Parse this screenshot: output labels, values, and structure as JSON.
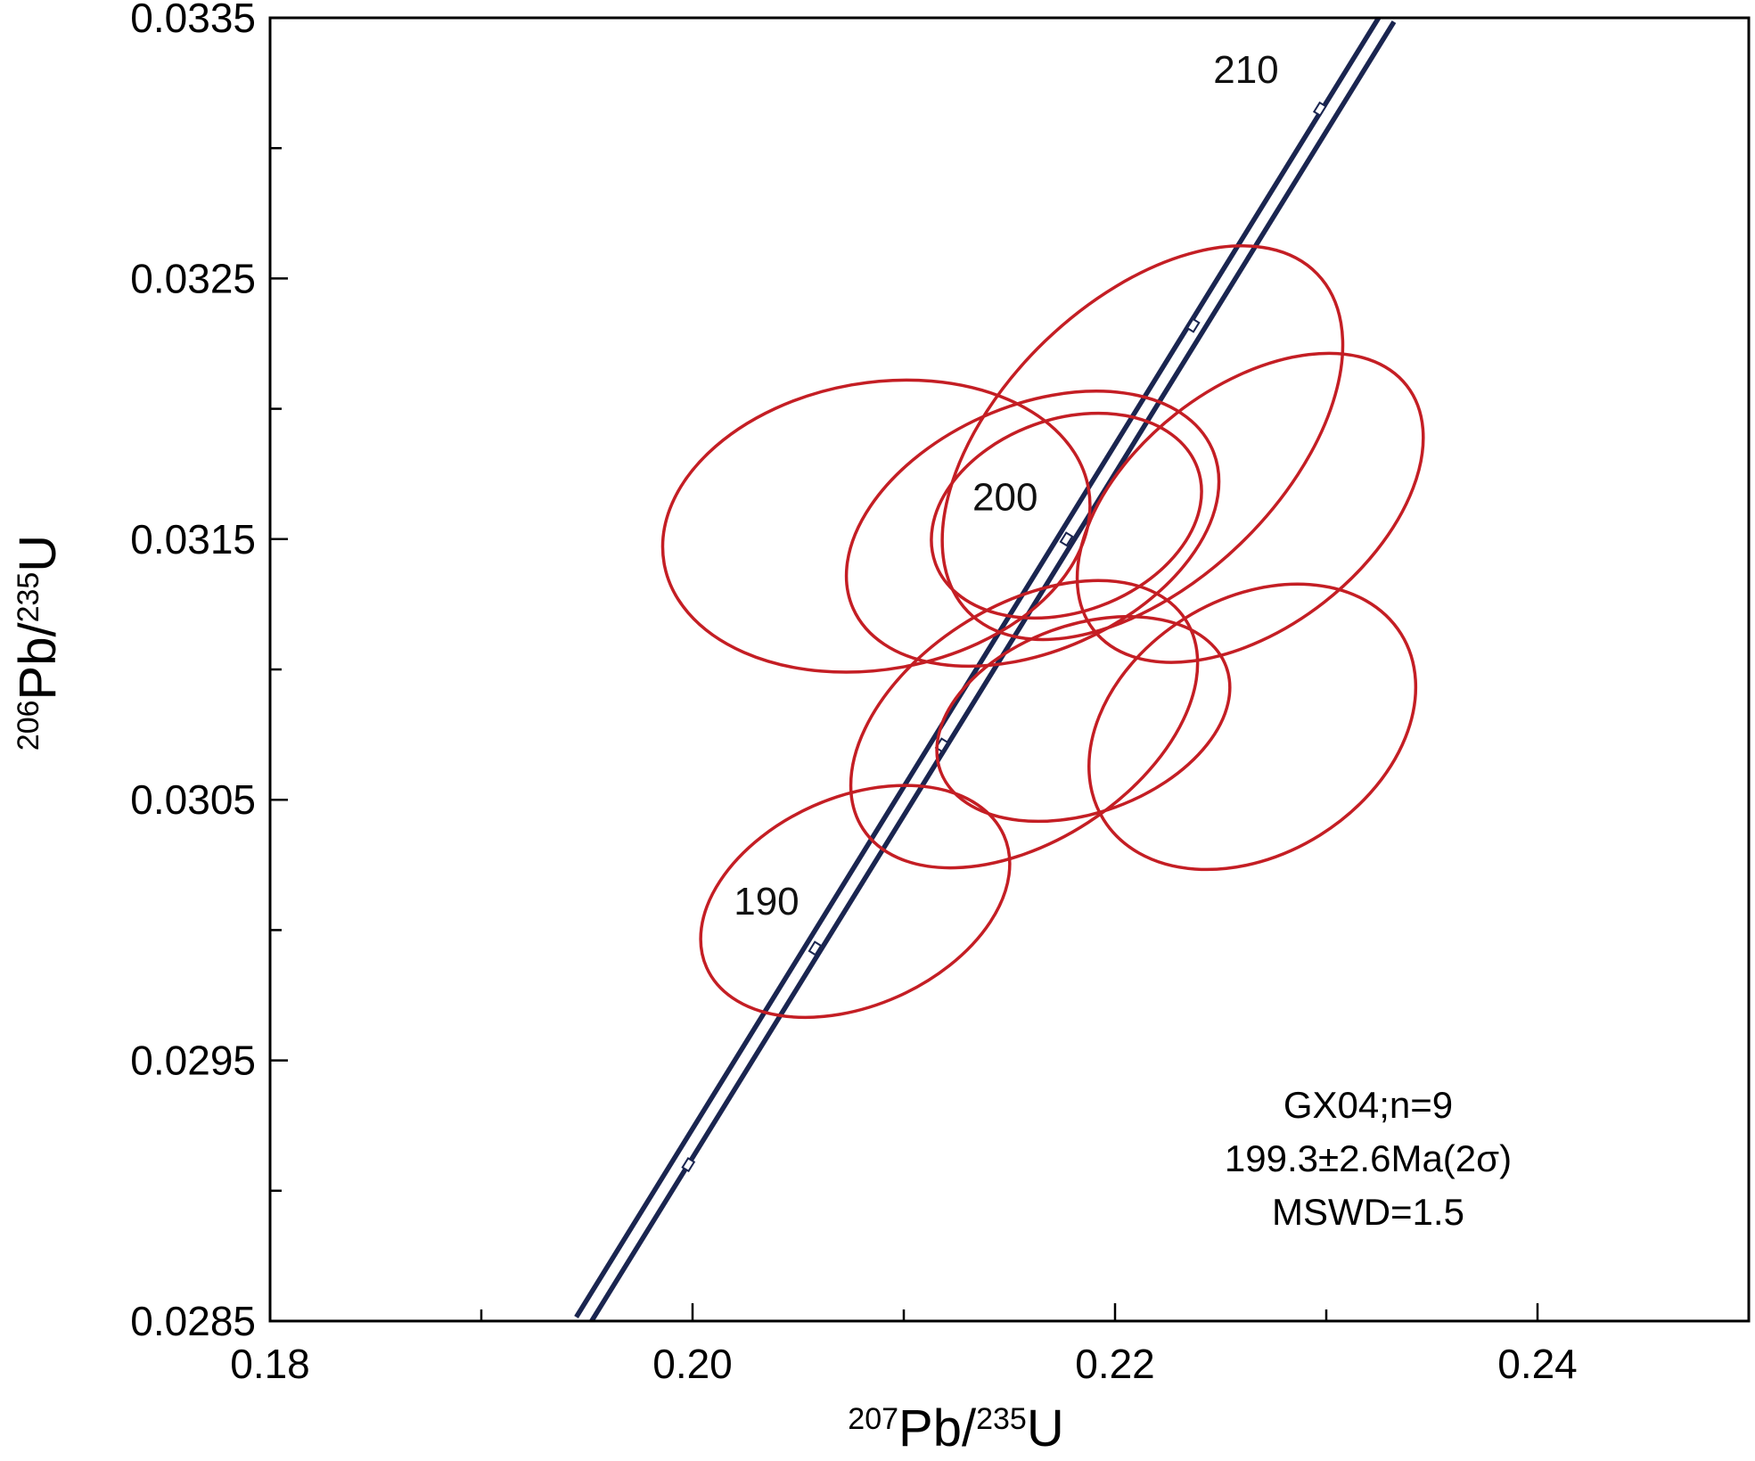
{
  "chart_data": {
    "type": "scatter",
    "subtype": "concordia-diagram",
    "title": "",
    "xlabel": {
      "base": "Pb/",
      "sup1": "207",
      "sup2": "235",
      "tail": "U"
    },
    "ylabel": {
      "base": "Pb/",
      "sup1": "206",
      "sup2": "235",
      "tail": "U"
    },
    "xlim": [
      0.18,
      0.25
    ],
    "ylim": [
      0.0285,
      0.0335
    ],
    "x_ticks": [
      {
        "value": 0.18,
        "label": "0.18"
      },
      {
        "value": 0.2,
        "label": "0.20"
      },
      {
        "value": 0.22,
        "label": "0.22"
      },
      {
        "value": 0.24,
        "label": "0.24"
      }
    ],
    "x_minor_ticks": [
      0.19,
      0.21,
      0.23
    ],
    "y_ticks": [
      {
        "value": 0.0285,
        "label": "0.0285"
      },
      {
        "value": 0.0295,
        "label": "0.0295"
      },
      {
        "value": 0.0305,
        "label": "0.0305"
      },
      {
        "value": 0.0315,
        "label": "0.0315"
      },
      {
        "value": 0.0325,
        "label": "0.0325"
      },
      {
        "value": 0.0335,
        "label": "0.0335"
      }
    ],
    "y_minor_ticks": [
      0.029,
      0.03,
      0.031,
      0.032,
      0.033
    ],
    "grid": false,
    "concordia": {
      "color": "#1a2550",
      "line": [
        [
          0.1948,
          0.0285
        ],
        [
          0.2329,
          0.0335
        ]
      ],
      "age_labels": [
        {
          "age": "190",
          "x": 0.2058,
          "y": 0.02993,
          "label_x": 0.2035,
          "label_y": 0.03006
        },
        {
          "age": "200",
          "x": 0.2177,
          "y": 0.0315,
          "label_x": 0.2148,
          "label_y": 0.03161
        },
        {
          "age": "210",
          "x": 0.2297,
          "y": 0.03315,
          "label_x": 0.2262,
          "label_y": 0.03325
        }
      ],
      "minor_marks": [
        {
          "x": 0.1998,
          "y": 0.0291
        },
        {
          "x": 0.2118,
          "y": 0.03071
        },
        {
          "x": 0.2237,
          "y": 0.03232
        }
      ]
    },
    "ellipse_color": "#c41e24",
    "ellipses": [
      {
        "cx": 0.2087,
        "cy": 0.03155,
        "rx": 0.0102,
        "ry": 0.00055,
        "angle": 10
      },
      {
        "cx": 0.2161,
        "cy": 0.03154,
        "rx": 0.0093,
        "ry": 0.00047,
        "angle": 24
      },
      {
        "cx": 0.2177,
        "cy": 0.03159,
        "rx": 0.0066,
        "ry": 0.00037,
        "angle": 20
      },
      {
        "cx": 0.2213,
        "cy": 0.03187,
        "rx": 0.0115,
        "ry": 0.00054,
        "angle": 44
      },
      {
        "cx": 0.2264,
        "cy": 0.03162,
        "rx": 0.0094,
        "ry": 0.00046,
        "angle": 38
      },
      {
        "cx": 0.2157,
        "cy": 0.03079,
        "rx": 0.0091,
        "ry": 0.00045,
        "angle": 33
      },
      {
        "cx": 0.2185,
        "cy": 0.03081,
        "rx": 0.0072,
        "ry": 0.00036,
        "angle": 20
      },
      {
        "cx": 0.2265,
        "cy": 0.03078,
        "rx": 0.0083,
        "ry": 0.00049,
        "angle": 32
      },
      {
        "cx": 0.2077,
        "cy": 0.03011,
        "rx": 0.0077,
        "ry": 0.0004,
        "angle": 24
      }
    ],
    "annotation": [
      "GX04;n=9",
      "199.3±2.6Ma(2σ)",
      "MSWD=1.5"
    ],
    "legend": "bottom-right"
  }
}
